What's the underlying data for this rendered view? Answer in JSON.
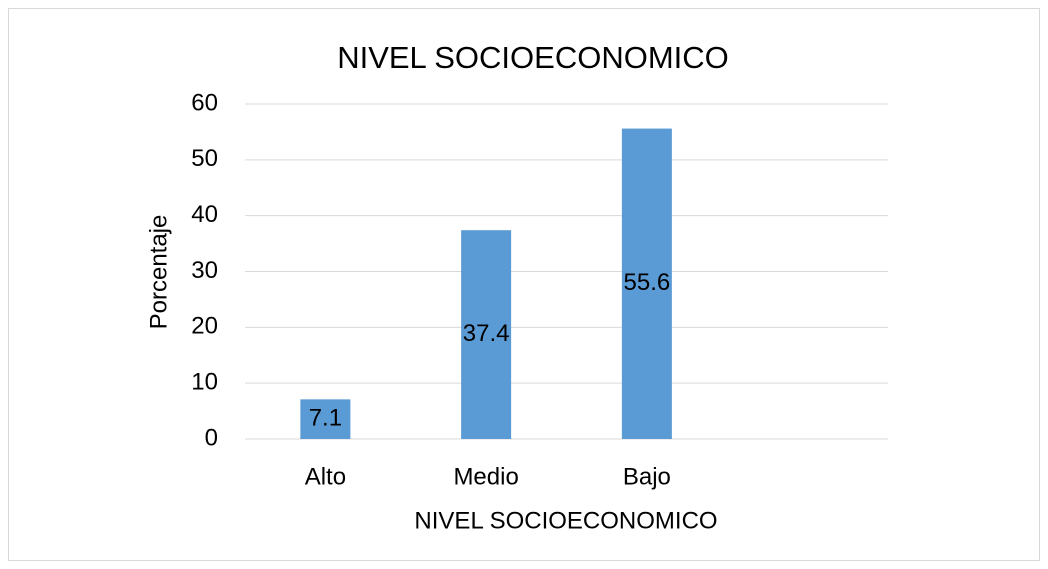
{
  "chart_data": {
    "type": "bar",
    "title": "NIVEL SOCIOECONOMICO",
    "x_label": "NIVEL SOCIOECONOMICO",
    "y_label": "Porcentaje",
    "categories": [
      "Alto",
      "Medio",
      "Bajo",
      null
    ],
    "values": [
      7.1,
      37.4,
      55.6,
      null
    ],
    "color": "#5b9bd5",
    "ylim": [
      0,
      60
    ],
    "yticks": [
      0,
      10,
      20,
      30,
      40,
      50,
      60
    ],
    "grid": true,
    "data_labels": true
  }
}
